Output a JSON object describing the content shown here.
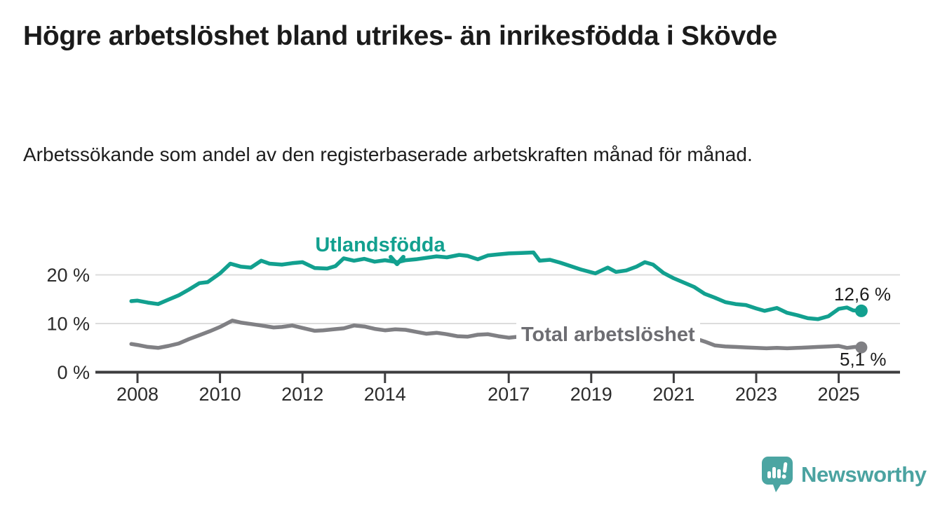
{
  "header": {
    "title": "Högre arbetslöshet bland utrikes- än inrikesfödda i Skövde",
    "subtitle": "Arbetssökande som andel av den registerbaserade arbetskraften månad för månad."
  },
  "chart_data": {
    "type": "line",
    "title": "Högre arbetslöshet bland utrikes- än inrikesfödda i Skövde",
    "subtitle": "Arbetssökande som andel av den registerbaserade arbetskraften månad för månad.",
    "unit": "%",
    "grid": "horizontal",
    "legend_position": "inline-labels-on-lines",
    "x_axis": {
      "ticks": [
        2008,
        2010,
        2012,
        2014,
        2017,
        2019,
        2021,
        2023,
        2025
      ],
      "range": [
        2007.6,
        2026.0
      ]
    },
    "y_axis": {
      "ticks": [
        {
          "value": 0,
          "label": "0 %"
        },
        {
          "value": 10,
          "label": "10 %"
        },
        {
          "value": 20,
          "label": "20 %"
        }
      ],
      "range": [
        0,
        27
      ]
    },
    "colors": {
      "axis": "#3d3d3f",
      "gridline": "#dcdcdc",
      "tick_label": "#2b2b2b"
    },
    "series": [
      {
        "name": "Utlandsfödda",
        "color": "#12A08F",
        "end_value": 12.6,
        "end_label": "12,6 %",
        "points": [
          [
            2007.85,
            14.6
          ],
          [
            2008.0,
            14.7
          ],
          [
            2008.25,
            14.3
          ],
          [
            2008.5,
            14.0
          ],
          [
            2008.75,
            14.9
          ],
          [
            2009.0,
            15.8
          ],
          [
            2009.25,
            17.0
          ],
          [
            2009.5,
            18.3
          ],
          [
            2009.7,
            18.5
          ],
          [
            2010.0,
            20.3
          ],
          [
            2010.25,
            22.3
          ],
          [
            2010.5,
            21.7
          ],
          [
            2010.75,
            21.5
          ],
          [
            2011.0,
            22.9
          ],
          [
            2011.2,
            22.3
          ],
          [
            2011.5,
            22.1
          ],
          [
            2011.75,
            22.4
          ],
          [
            2012.0,
            22.6
          ],
          [
            2012.3,
            21.4
          ],
          [
            2012.6,
            21.3
          ],
          [
            2012.8,
            21.8
          ],
          [
            2013.0,
            23.4
          ],
          [
            2013.25,
            22.9
          ],
          [
            2013.5,
            23.3
          ],
          [
            2013.75,
            22.7
          ],
          [
            2014.0,
            23.0
          ],
          [
            2014.3,
            22.6
          ],
          [
            2014.5,
            23.0
          ],
          [
            2014.75,
            23.2
          ],
          [
            2015.0,
            23.5
          ],
          [
            2015.25,
            23.8
          ],
          [
            2015.5,
            23.6
          ],
          [
            2015.8,
            24.1
          ],
          [
            2016.0,
            23.9
          ],
          [
            2016.25,
            23.2
          ],
          [
            2016.5,
            24.0
          ],
          [
            2016.75,
            24.2
          ],
          [
            2017.0,
            24.4
          ],
          [
            2017.3,
            24.5
          ],
          [
            2017.6,
            24.6
          ],
          [
            2017.75,
            22.9
          ],
          [
            2018.0,
            23.1
          ],
          [
            2018.25,
            22.5
          ],
          [
            2018.5,
            21.8
          ],
          [
            2018.75,
            21.1
          ],
          [
            2019.1,
            20.3
          ],
          [
            2019.4,
            21.5
          ],
          [
            2019.6,
            20.6
          ],
          [
            2019.85,
            20.9
          ],
          [
            2020.1,
            21.7
          ],
          [
            2020.3,
            22.6
          ],
          [
            2020.5,
            22.1
          ],
          [
            2020.75,
            20.4
          ],
          [
            2021.0,
            19.3
          ],
          [
            2021.25,
            18.4
          ],
          [
            2021.5,
            17.5
          ],
          [
            2021.75,
            16.1
          ],
          [
            2022.0,
            15.3
          ],
          [
            2022.25,
            14.4
          ],
          [
            2022.5,
            14.0
          ],
          [
            2022.75,
            13.8
          ],
          [
            2023.0,
            13.1
          ],
          [
            2023.2,
            12.6
          ],
          [
            2023.5,
            13.2
          ],
          [
            2023.75,
            12.2
          ],
          [
            2024.0,
            11.7
          ],
          [
            2024.25,
            11.1
          ],
          [
            2024.5,
            10.9
          ],
          [
            2024.75,
            11.5
          ],
          [
            2025.0,
            13.0
          ],
          [
            2025.2,
            13.3
          ],
          [
            2025.35,
            12.7
          ],
          [
            2025.55,
            12.6
          ]
        ]
      },
      {
        "name": "Total arbetslöshet",
        "color": "#808084",
        "end_value": 5.1,
        "end_label": "5,1 %",
        "points": [
          [
            2007.85,
            5.8
          ],
          [
            2008.0,
            5.6
          ],
          [
            2008.25,
            5.2
          ],
          [
            2008.5,
            5.0
          ],
          [
            2008.75,
            5.4
          ],
          [
            2009.0,
            5.9
          ],
          [
            2009.25,
            6.8
          ],
          [
            2009.5,
            7.6
          ],
          [
            2009.75,
            8.4
          ],
          [
            2010.0,
            9.3
          ],
          [
            2010.3,
            10.6
          ],
          [
            2010.5,
            10.2
          ],
          [
            2010.75,
            9.9
          ],
          [
            2011.0,
            9.6
          ],
          [
            2011.3,
            9.2
          ],
          [
            2011.5,
            9.3
          ],
          [
            2011.75,
            9.6
          ],
          [
            2012.0,
            9.1
          ],
          [
            2012.3,
            8.5
          ],
          [
            2012.5,
            8.6
          ],
          [
            2012.75,
            8.8
          ],
          [
            2013.0,
            9.0
          ],
          [
            2013.25,
            9.6
          ],
          [
            2013.5,
            9.4
          ],
          [
            2013.75,
            8.9
          ],
          [
            2014.0,
            8.6
          ],
          [
            2014.25,
            8.8
          ],
          [
            2014.5,
            8.7
          ],
          [
            2014.75,
            8.3
          ],
          [
            2015.0,
            7.9
          ],
          [
            2015.25,
            8.1
          ],
          [
            2015.5,
            7.8
          ],
          [
            2015.75,
            7.4
          ],
          [
            2016.0,
            7.3
          ],
          [
            2016.25,
            7.7
          ],
          [
            2016.5,
            7.8
          ],
          [
            2016.75,
            7.4
          ],
          [
            2017.0,
            7.1
          ],
          [
            2017.25,
            7.3
          ],
          [
            2017.5,
            7.0
          ],
          [
            2017.75,
            6.7
          ],
          [
            2018.0,
            6.5
          ],
          [
            2018.25,
            6.7
          ],
          [
            2018.5,
            6.8
          ],
          [
            2018.75,
            6.4
          ],
          [
            2019.0,
            6.3
          ],
          [
            2019.25,
            6.5
          ],
          [
            2019.5,
            6.6
          ],
          [
            2019.75,
            6.4
          ],
          [
            2020.0,
            6.7
          ],
          [
            2020.25,
            8.3
          ],
          [
            2020.5,
            8.8
          ],
          [
            2020.75,
            8.5
          ],
          [
            2021.0,
            8.0
          ],
          [
            2021.25,
            7.5
          ],
          [
            2021.5,
            7.0
          ],
          [
            2021.75,
            6.3
          ],
          [
            2022.0,
            5.5
          ],
          [
            2022.25,
            5.3
          ],
          [
            2022.5,
            5.2
          ],
          [
            2022.75,
            5.1
          ],
          [
            2023.0,
            5.0
          ],
          [
            2023.25,
            4.9
          ],
          [
            2023.5,
            5.0
          ],
          [
            2023.75,
            4.9
          ],
          [
            2024.0,
            5.0
          ],
          [
            2024.25,
            5.1
          ],
          [
            2024.5,
            5.2
          ],
          [
            2024.75,
            5.3
          ],
          [
            2025.0,
            5.4
          ],
          [
            2025.2,
            5.0
          ],
          [
            2025.4,
            5.2
          ],
          [
            2025.55,
            5.1
          ]
        ]
      }
    ]
  },
  "footer": {
    "logo_text": "Newsworthy",
    "logo_icon": "newsworthy-bubble-chart-icon",
    "logo_color": "#4BA3A1"
  }
}
